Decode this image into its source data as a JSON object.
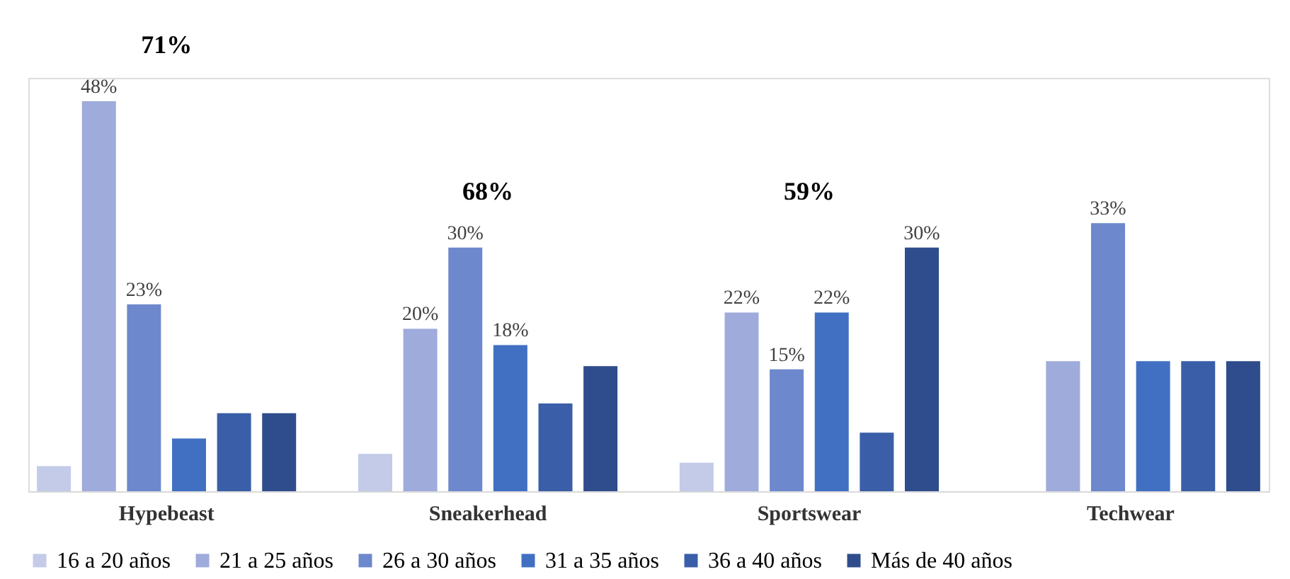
{
  "chart_data": {
    "type": "bar",
    "categories": [
      "Hypebeast",
      "Sneakerhead",
      "Sportswear",
      "Techwear"
    ],
    "series": [
      {
        "name": "16 a 20 años",
        "color": "#c3cbe8",
        "values": [
          3.1,
          4.6,
          3.5,
          null
        ],
        "value_labels": [
          null,
          null,
          null,
          null
        ]
      },
      {
        "name": "21 a 25 años",
        "color": "#9eabdb",
        "values": [
          48,
          20,
          22,
          16
        ],
        "value_labels": [
          "48%",
          "20%",
          "22%",
          null
        ]
      },
      {
        "name": "26 a 30 años",
        "color": "#6d88cc",
        "values": [
          23,
          30,
          15,
          33
        ],
        "value_labels": [
          "23%",
          "30%",
          "15%",
          "33%"
        ]
      },
      {
        "name": "31 a 35 años",
        "color": "#4170c2",
        "values": [
          6.5,
          18,
          22,
          16
        ],
        "value_labels": [
          null,
          "18%",
          "22%",
          null
        ]
      },
      {
        "name": "36 a 40 años",
        "color": "#3a5ea8",
        "values": [
          9.6,
          10.8,
          7.2,
          16
        ],
        "value_labels": [
          null,
          null,
          null,
          null
        ]
      },
      {
        "name": "Más de 40 años",
        "color": "#2f4d8c",
        "values": [
          9.6,
          15.4,
          30,
          16
        ],
        "value_labels": [
          null,
          null,
          "30%",
          null
        ]
      }
    ],
    "annotations": [
      "71%",
      "68%",
      "59%"
    ],
    "legend": "bottom",
    "grid": false,
    "tick_labels": "x"
  }
}
